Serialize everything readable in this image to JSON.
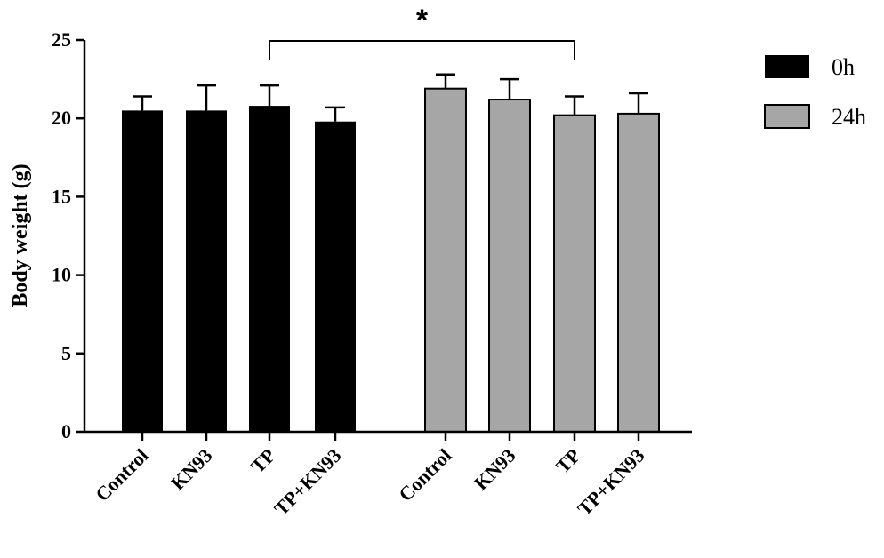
{
  "chart_data": {
    "type": "bar",
    "title": "",
    "xlabel": "",
    "ylabel": "Body weight (g)",
    "ylim": [
      0,
      25
    ],
    "yticks": [
      0,
      5,
      10,
      15,
      20,
      25
    ],
    "categories": [
      "Control",
      "KN93",
      "TP",
      "TP+KN93"
    ],
    "series": [
      {
        "name": "0h",
        "color": "#000000",
        "values": [
          20.5,
          20.5,
          20.8,
          19.8
        ],
        "errors": [
          0.9,
          1.6,
          1.3,
          0.9
        ]
      },
      {
        "name": "24h",
        "color": "#a6a6a6",
        "values": [
          21.9,
          21.2,
          20.2,
          20.3
        ],
        "errors": [
          0.9,
          1.3,
          1.2,
          1.3
        ]
      }
    ],
    "legend": {
      "position": "top-right"
    },
    "annotations": [
      {
        "type": "significance",
        "text": "*",
        "from": {
          "series": 0,
          "category": 2
        },
        "to": {
          "series": 1,
          "category": 2
        }
      }
    ],
    "grid": false
  }
}
